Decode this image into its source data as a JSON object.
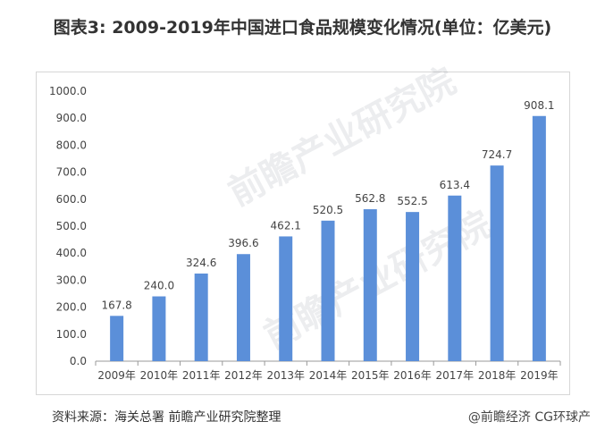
{
  "title": "图表3: 2009-2019年中国进口食品规模变化情况(单位：亿美元)",
  "source": "资料来源：海关总署 前瞻产业研究院整理",
  "credit": "@前瞻经济 CG环球产",
  "watermark": "前瞻产业研究院",
  "colors": {
    "bar": "#5b8fd9",
    "axis": "#999999",
    "text": "#444444"
  },
  "chart_data": {
    "type": "bar",
    "categories": [
      "2009年",
      "2010年",
      "2011年",
      "2012年",
      "2013年",
      "2014年",
      "2015年",
      "2016年",
      "2017年",
      "2018年",
      "2019年"
    ],
    "values": [
      167.8,
      240.0,
      324.6,
      396.6,
      462.1,
      520.5,
      562.8,
      552.5,
      613.4,
      724.7,
      908.1
    ],
    "data_labels": [
      "167.8",
      "240.0",
      "324.6",
      "396.6",
      "462.1",
      "520.5",
      "562.8",
      "552.5",
      "613.4",
      "724.7",
      "908.1"
    ],
    "yticks": [
      "0.0",
      "100.0",
      "200.0",
      "300.0",
      "400.0",
      "500.0",
      "600.0",
      "700.0",
      "800.0",
      "900.0",
      "1000.0"
    ],
    "ylim": [
      0,
      1000
    ],
    "grid": false,
    "legend": "none"
  }
}
